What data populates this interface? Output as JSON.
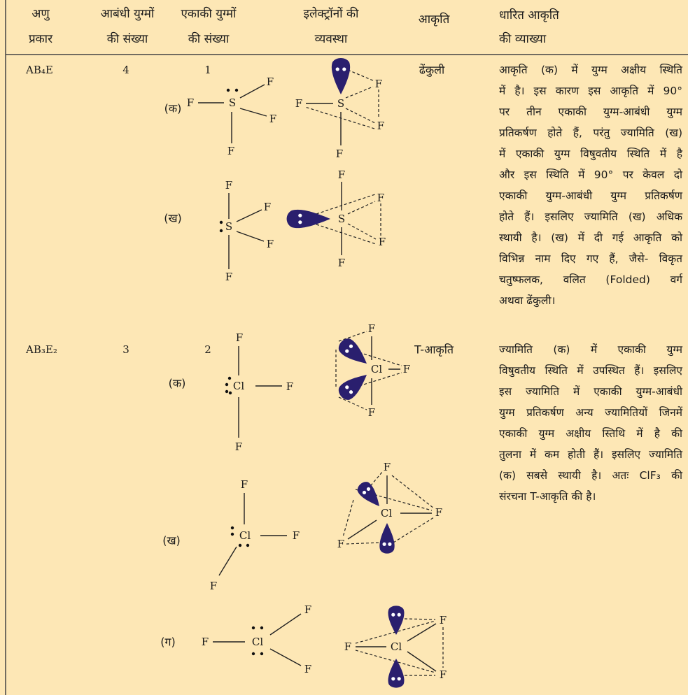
{
  "header": {
    "columns": [
      [
        "अणु",
        "प्रकार"
      ],
      [
        "आबंधी युग्मों",
        "की संख्या"
      ],
      [
        "एकाकी युग्मों",
        "की संख्या"
      ],
      [
        "इलेक्ट्रॉनों की",
        "व्यवस्था"
      ],
      [
        "आकृति"
      ],
      [
        "धारित आकृति",
        "की व्याख्या"
      ]
    ]
  },
  "rows": [
    {
      "type": "AB₄E",
      "bond_pairs": 4,
      "lone_pairs": 1,
      "shape": "ढेंकुली",
      "structures": [
        {
          "label": "(क)",
          "atoms": [
            "F",
            "S",
            "F",
            "F",
            "F"
          ]
        },
        {
          "label": "(ख)",
          "atoms": [
            "F",
            "S",
            "F",
            "F",
            "F"
          ]
        }
      ],
      "arrangements": [
        {
          "atoms": [
            "F",
            "S",
            "F",
            "F",
            "F"
          ]
        },
        {
          "atoms": [
            "F",
            "S",
            "F",
            "F",
            "F"
          ]
        }
      ],
      "explanation": [
        "आकृति (क) में युग्म अक्षीय स्थिति",
        "में है। इस कारण इस आकृति में 90°",
        "पर तीन एकाकी युग्म-आबंधी युग्म",
        "प्रतिकर्षण होते हैं, परंतु ज्यामिति (ख)",
        "में एकाकी युग्म विषुवतीय स्थिति में है",
        "और इस स्थिति में 90° पर केवल दो",
        "एकाकी युग्म-आबंधी युग्म प्रतिकर्षण",
        "होते हैं। इसलिए ज्यामिति (ख) अधिक",
        "स्थायी है। (ख) में दी गई आकृति को",
        "विभिन्न नाम दिए गए हैं, जैसे- विकृत",
        "चतुष्फलक, वलित (Folded) वर्ग",
        "अथवा ढेंकुली।"
      ]
    },
    {
      "type": "AB₃E₂",
      "bond_pairs": 3,
      "lone_pairs": 2,
      "shape": "T-आकृति",
      "structures": [
        {
          "label": "(क)",
          "atoms": [
            "F",
            "Cl",
            "F",
            "F"
          ]
        },
        {
          "label": "(ख)",
          "atoms": [
            "F",
            "Cl",
            "F",
            "F"
          ]
        },
        {
          "label": "(ग)",
          "atoms": [
            "F",
            "Cl",
            "F",
            "F"
          ]
        }
      ],
      "arrangements": [
        {
          "atoms": [
            "F",
            "Cl",
            "F",
            "F"
          ]
        },
        {
          "atoms": [
            "F",
            "Cl",
            "F",
            "F"
          ]
        },
        {
          "atoms": [
            "F",
            "Cl",
            "F",
            "F"
          ]
        }
      ],
      "explanation": [
        "ज्यामिति (क) में एकाकी युग्म",
        "विषुवतीय स्थिति में उपस्थित हैं। इसलिए",
        "इस ज्यामिति में एकाकी युग्म-आबंधी",
        "युग्म प्रतिकर्षण अन्य ज्यामितियों जिनमें",
        "एकाकी युग्म अक्षीय स्तिथि में है की",
        "तुलना में कम होती हैं। इसलिए ज्यामिति",
        "(क) सबसे स्थायी है। अतः ClF₃ की",
        "संरचना T-आकृति की है।"
      ]
    }
  ]
}
